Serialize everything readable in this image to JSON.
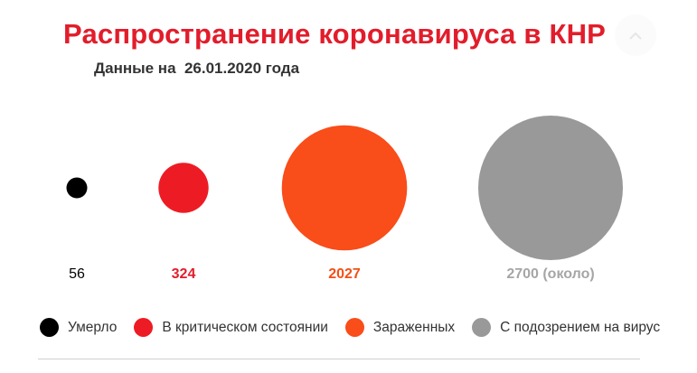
{
  "header": {
    "title": "Распространение коронавируса в КНР",
    "subtitle": "Данные на  26.01.2020 года"
  },
  "controls": {
    "corner_icon": "chevron-up-icon"
  },
  "chart_data": {
    "type": "bubble",
    "categories": [
      "Умерло",
      "В критическом состоянии",
      "Зараженных",
      "С подозрением на вирус"
    ],
    "values": [
      56,
      324,
      2027,
      2700
    ],
    "value_labels": [
      "56",
      "324",
      "2027",
      "2700 (около)"
    ],
    "colors": [
      "#000000",
      "#ed1c24",
      "#f94d1a",
      "#999999"
    ],
    "label_colors": [
      "#000000",
      "#e21d2b",
      "#f24f17",
      "#a6a6a6"
    ],
    "legend_position": "bottom",
    "grid": false
  }
}
